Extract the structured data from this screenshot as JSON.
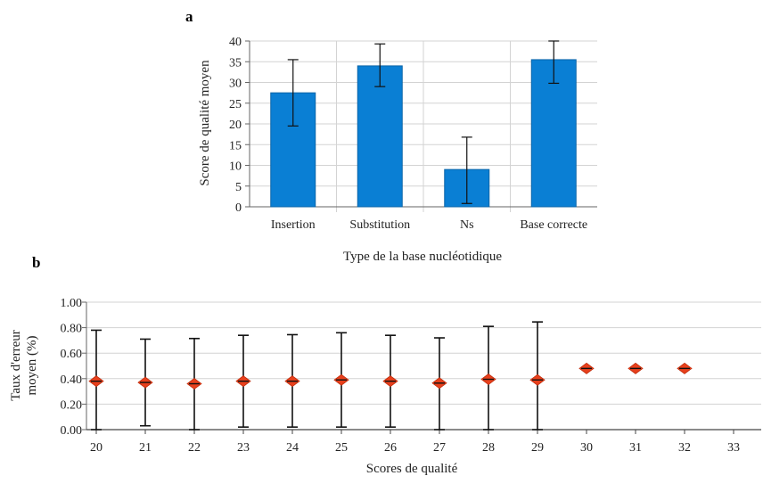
{
  "panels": {
    "a": {
      "label": "a"
    },
    "b": {
      "label": "b"
    }
  },
  "chart_data": [
    {
      "type": "bar",
      "panel": "a",
      "title": "",
      "xlabel": "Type de la base nucléotidique",
      "ylabel": "Score de qualité moyen",
      "categories": [
        "Insertion",
        "Substitution",
        "Ns",
        "Base correcte"
      ],
      "values": [
        27.5,
        34,
        9,
        35.5
      ],
      "error_low": [
        19.5,
        29,
        0.8,
        29.8
      ],
      "error_high": [
        35.5,
        39.3,
        16.8,
        40
      ],
      "ylim": [
        0,
        40
      ],
      "yticks": [
        0,
        5,
        10,
        15,
        20,
        25,
        30,
        35,
        40
      ],
      "grid": true,
      "colors": {
        "bar": "#0a7fd4",
        "bar_edge": "#0a65a8",
        "error": "#111111",
        "grid": "#d3d3d3"
      }
    },
    {
      "type": "scatter",
      "panel": "b",
      "title": "",
      "xlabel": "Scores de qualité",
      "ylabel": "Taux d'erreur moyen (%)",
      "ylabel_lines": [
        "Taux d'erreur",
        "moyen (%)"
      ],
      "categories": [
        "20",
        "21",
        "22",
        "23",
        "24",
        "25",
        "26",
        "27",
        "28",
        "29",
        "30",
        "31",
        "32",
        "33"
      ],
      "values": [
        0.38,
        0.37,
        0.36,
        0.38,
        0.38,
        0.39,
        0.38,
        0.365,
        0.395,
        0.39,
        0.48,
        0.48,
        0.48,
        null
      ],
      "error_low": [
        0.0,
        0.03,
        0.0,
        0.02,
        0.02,
        0.02,
        0.02,
        0.0,
        0.0,
        0.0,
        null,
        null,
        null,
        null
      ],
      "error_high": [
        0.78,
        0.71,
        0.715,
        0.74,
        0.745,
        0.76,
        0.74,
        0.72,
        0.81,
        0.845,
        null,
        null,
        null,
        null
      ],
      "ylim": [
        0,
        1
      ],
      "yticks": [
        "0.00",
        "0.20",
        "0.40",
        "0.60",
        "0.80",
        "1.00"
      ],
      "grid": true,
      "colors": {
        "marker": "#e8401c",
        "error": "#111111",
        "grid": "#d3d3d3"
      }
    }
  ]
}
